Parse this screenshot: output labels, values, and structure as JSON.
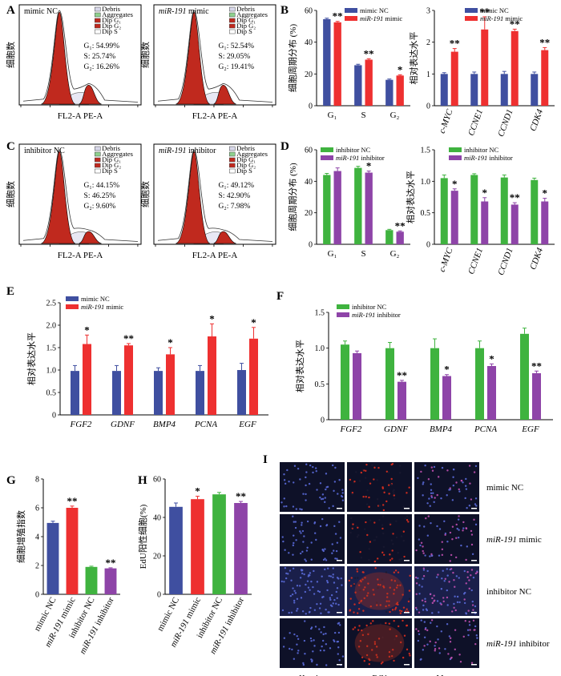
{
  "panel_letters": [
    "A",
    "B",
    "C",
    "D",
    "E",
    "F",
    "G",
    "H",
    "I"
  ],
  "flow_legend": [
    "Debris",
    "Aggregates",
    "Dip G₁",
    "Dip G₂",
    "Dip S"
  ],
  "colors": {
    "blue": "#3f4fa0",
    "red": "#ee3030",
    "green": "#3fb33f",
    "purple": "#8e44a8",
    "histo_red": "#c0291e"
  },
  "chart_data": [
    {
      "id": "A1",
      "type": "histogram",
      "title": "mimic NC",
      "xlabel": "FL2-A PE-A",
      "ylabel": "细胞数",
      "stats": [
        "G₁: 54.99%",
        "S: 25.74%",
        "G₂: 16.26%"
      ]
    },
    {
      "id": "A2",
      "type": "histogram",
      "title_italic": "miR-191",
      "title_rest": " mimic",
      "xlabel": "FL2-A PE-A",
      "ylabel": "细胞数",
      "stats": [
        "G₁: 52.54%",
        "S: 29.05%",
        "G₂: 19.41%"
      ]
    },
    {
      "id": "C1",
      "type": "histogram",
      "title": "inhibitor NC",
      "xlabel": "FL2-A PE-A",
      "ylabel": "细胞数",
      "stats": [
        "G₁: 44.15%",
        "S: 46.25%",
        "G₂: 9.60%"
      ]
    },
    {
      "id": "C2",
      "type": "histogram",
      "title_italic": "miR-191",
      "title_rest": " inhibitor",
      "xlabel": "FL2-A PE-A",
      "ylabel": "细胞数",
      "stats": [
        "G₁: 49.12%",
        "S: 42.90%",
        "G₂: 7.98%"
      ]
    },
    {
      "id": "B1",
      "type": "bar",
      "ylabel": "细胞周期分布 (%)",
      "ylim": [
        0,
        60
      ],
      "yticks": [
        0,
        20,
        40,
        60
      ],
      "categories": [
        "G₁",
        "S",
        "G₂"
      ],
      "series": [
        {
          "name": "mimic NC",
          "values": [
            54.5,
            25.5,
            16.3
          ],
          "err": [
            0.6,
            0.6,
            0.5
          ]
        },
        {
          "name_italic": "miR-191",
          "name_rest": " mimic",
          "values": [
            52.5,
            29.0,
            19.0
          ],
          "err": [
            0.6,
            0.6,
            0.5
          ]
        }
      ],
      "sig": [
        "**",
        "**",
        "*"
      ]
    },
    {
      "id": "B2",
      "type": "bar",
      "ylabel": "相对表达水平",
      "ylim": [
        0,
        3
      ],
      "yticks": [
        0,
        1,
        2,
        3
      ],
      "categories": [
        "c-MYC",
        "CCNE1",
        "CCND1",
        "CDK4"
      ],
      "series": [
        {
          "name": "mimic NC",
          "values": [
            1.0,
            1.0,
            1.0,
            1.0
          ],
          "err": [
            0.04,
            0.06,
            0.08,
            0.06
          ]
        },
        {
          "name_italic": "miR-191",
          "name_rest": " mimic",
          "values": [
            1.7,
            2.4,
            2.35,
            1.75
          ],
          "err": [
            0.1,
            0.4,
            0.06,
            0.08
          ]
        }
      ],
      "sig": [
        "**",
        "**",
        "**",
        "**"
      ]
    },
    {
      "id": "D1",
      "type": "bar",
      "ylabel": "细胞周期分布 (%)",
      "ylim": [
        0,
        60
      ],
      "yticks": [
        0,
        20,
        40,
        60
      ],
      "categories": [
        "G₁",
        "S",
        "G₂"
      ],
      "series": [
        {
          "name": "inhibitor NC",
          "values": [
            44.0,
            48.5,
            9.0
          ],
          "err": [
            1.0,
            1.0,
            0.5
          ]
        },
        {
          "name_italic": "miR-191",
          "name_rest": " inhibitor",
          "values": [
            46.5,
            45.5,
            8.0
          ],
          "err": [
            2.0,
            1.0,
            0.5
          ]
        }
      ],
      "sig": [
        "",
        "*",
        "**"
      ]
    },
    {
      "id": "D2",
      "type": "bar",
      "ylabel": "相对表达水平",
      "ylim": [
        0,
        1.5
      ],
      "yticks": [
        0,
        0.5,
        1.0,
        1.5
      ],
      "yticklabels": [
        "0",
        "0.5",
        "1.0",
        "1.5"
      ],
      "categories": [
        "c-MYC",
        "CCNE1",
        "CCND1",
        "CDK4"
      ],
      "series": [
        {
          "name": "inhibitor NC",
          "values": [
            1.05,
            1.1,
            1.06,
            1.02
          ],
          "err": [
            0.05,
            0.02,
            0.04,
            0.03
          ]
        },
        {
          "name_italic": "miR-191",
          "name_rest": " inhibitor",
          "values": [
            0.85,
            0.68,
            0.63,
            0.68
          ],
          "err": [
            0.03,
            0.06,
            0.03,
            0.05
          ]
        }
      ],
      "sig": [
        "*",
        "*",
        "**",
        "*"
      ]
    },
    {
      "id": "E",
      "type": "bar",
      "ylabel": "相对表达水平",
      "ylim": [
        0,
        2.5
      ],
      "yticks": [
        0,
        0.5,
        1.0,
        1.5,
        2.0,
        2.5
      ],
      "yticklabels": [
        "0",
        "0.5",
        "1.0",
        "1.5",
        "2.0",
        "2.5"
      ],
      "categories": [
        "FGF2",
        "GDNF",
        "BMP4",
        "PCNA",
        "EGF"
      ],
      "series": [
        {
          "name": "mimic NC",
          "values": [
            0.98,
            0.98,
            0.98,
            0.98,
            1.0
          ],
          "err": [
            0.12,
            0.12,
            0.07,
            0.12,
            0.15
          ]
        },
        {
          "name_italic": "miR-191",
          "name_rest": " mimic",
          "values": [
            1.58,
            1.55,
            1.35,
            1.75,
            1.7
          ],
          "err": [
            0.2,
            0.04,
            0.15,
            0.28,
            0.25
          ]
        }
      ],
      "sig": [
        "*",
        "**",
        "*",
        "*",
        "*"
      ]
    },
    {
      "id": "F",
      "type": "bar",
      "ylabel": "相对表达水平",
      "ylim": [
        0,
        1.5
      ],
      "yticks": [
        0,
        0.5,
        1.0,
        1.5
      ],
      "yticklabels": [
        "0",
        "0.5",
        "1.0",
        "1.5"
      ],
      "categories": [
        "FGF2",
        "GDNF",
        "BMP4",
        "PCNA",
        "EGF"
      ],
      "series": [
        {
          "name": "inhibitor NC",
          "values": [
            1.05,
            1.0,
            1.0,
            1.0,
            1.2
          ],
          "err": [
            0.05,
            0.08,
            0.13,
            0.1,
            0.08
          ]
        },
        {
          "name_italic": "miR-191",
          "name_rest": " inhibitor",
          "values": [
            0.93,
            0.53,
            0.61,
            0.75,
            0.65
          ],
          "err": [
            0.03,
            0.02,
            0.02,
            0.03,
            0.03
          ]
        }
      ],
      "sig": [
        "",
        "**",
        "*",
        "*",
        "**"
      ]
    },
    {
      "id": "G",
      "type": "bar",
      "ylabel": "细胞增殖指数",
      "ylim": [
        0,
        8
      ],
      "yticks": [
        0,
        2,
        4,
        6,
        8
      ],
      "categories": [
        {
          "t": "mimic NC"
        },
        {
          "i": "miR-191",
          "t": " mimic"
        },
        {
          "t": "inhibitor NC"
        },
        {
          "i": "miR-191",
          "t": " inhibitor"
        }
      ],
      "values": [
        4.95,
        6.0,
        1.9,
        1.8
      ],
      "err": [
        0.12,
        0.12,
        0.05,
        0.04
      ],
      "sig": [
        "",
        "**",
        "",
        "**"
      ]
    },
    {
      "id": "H",
      "type": "bar",
      "ylabel": "EdU阳性细胞(%)",
      "ylim": [
        0,
        60
      ],
      "yticks": [
        0,
        20,
        40,
        60
      ],
      "categories": [
        {
          "t": "mimic NC"
        },
        {
          "i": "miR-191",
          "t": " mimic"
        },
        {
          "t": "inhibitor NC"
        },
        {
          "i": "miR-191",
          "t": " inhibitor"
        }
      ],
      "values": [
        45.5,
        49.5,
        52.0,
        47.5
      ],
      "err": [
        2.0,
        1.5,
        1.0,
        0.8
      ],
      "sig": [
        "",
        "*",
        "",
        "**"
      ]
    }
  ],
  "panel_I": {
    "rows": [
      {
        "t": "mimic NC"
      },
      {
        "i": "miR-191",
        "t": " mimic"
      },
      {
        "t": "inhibitor NC"
      },
      {
        "i": "miR-191",
        "t": " inhibitor"
      }
    ],
    "columns": [
      "Hoechst",
      "EdU",
      "Merge"
    ]
  }
}
